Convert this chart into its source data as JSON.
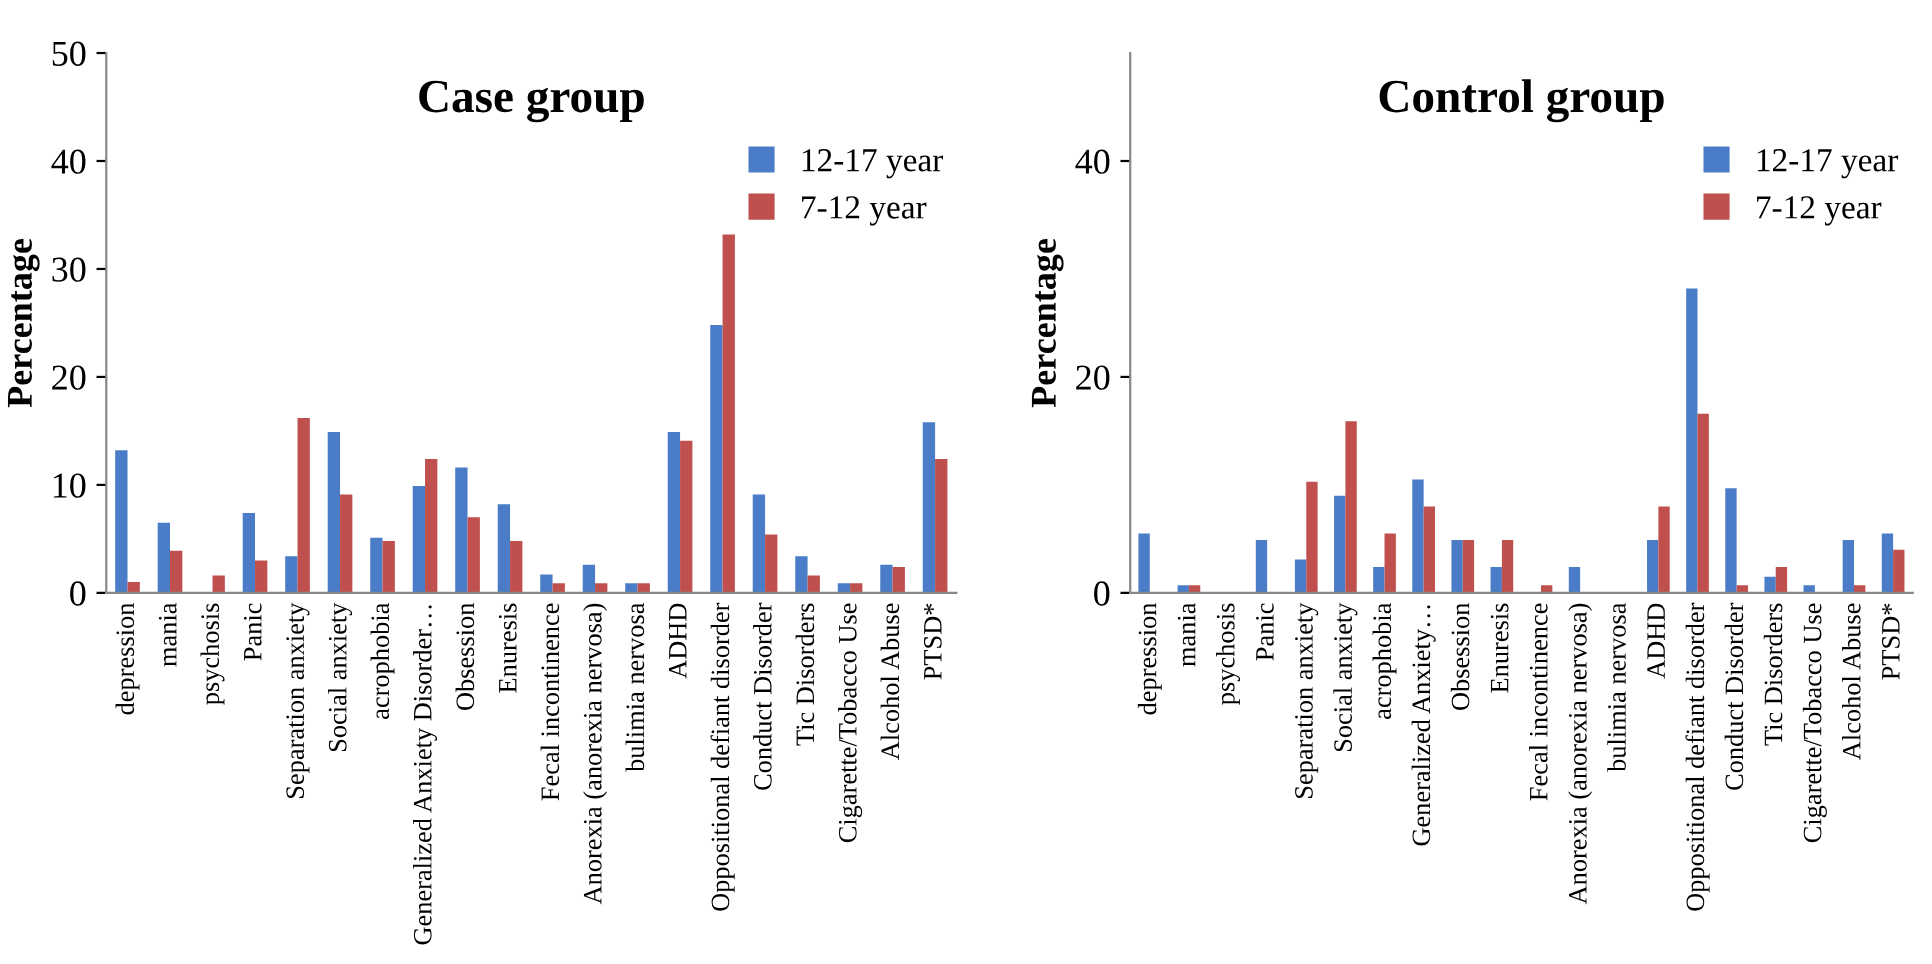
{
  "chart_data": [
    {
      "type": "bar",
      "title": "Case group",
      "ylabel": "Percentage",
      "categories": [
        "depression",
        "mania",
        "psychosis",
        "Panic",
        "Separation anxiety",
        "Social anxiety",
        "acrophobia",
        "Generalized Anxiety Disorder…",
        "Obsession",
        "Enuresis",
        "Fecal incontinence",
        "Anorexia (anorexia nervosa)",
        "bulimia nervosa",
        "ADHD",
        "Oppositional defiant disorder",
        "Conduct Disorder",
        "Tic Disorders",
        "Cigarette/Tobacco Use",
        "Alcohol Abuse",
        "PTSD*"
      ],
      "series": [
        {
          "name": "12-17 year",
          "color": "#4a7cc7",
          "values": [
            13.2,
            6.5,
            0,
            7.4,
            3.4,
            14.9,
            5.1,
            9.9,
            11.6,
            8.2,
            1.7,
            2.6,
            0.9,
            14.9,
            24.8,
            9.1,
            3.4,
            0.9,
            2.6,
            15.8
          ]
        },
        {
          "name": "7-12 year",
          "color": "#c0504d",
          "values": [
            1.0,
            3.9,
            1.6,
            3.0,
            16.2,
            9.1,
            4.8,
            12.4,
            7.0,
            4.8,
            0.9,
            0.9,
            0.9,
            14.1,
            33.2,
            5.4,
            1.6,
            0.9,
            2.4,
            12.4
          ]
        }
      ],
      "ylim": [
        0,
        50
      ],
      "yticks": [
        0,
        10,
        20,
        30,
        40,
        50
      ],
      "grid": false,
      "legend": "top right"
    },
    {
      "type": "bar",
      "title": "Control group",
      "ylabel": "Percentage",
      "categories": [
        "depression",
        "mania",
        "psychosis",
        "Panic",
        "Separation anxiety",
        "Social anxiety",
        "acrophobia",
        "Generalized Anxiety…",
        "Obsession",
        "Enuresis",
        "Fecal incontinence",
        "Anorexia (anorexia nervosa)",
        "bulimia nervosa",
        "ADHD",
        "Oppositional defiant disorder",
        "Conduct Disorder",
        "Tic Disorders",
        "Cigarette/Tobacco Use",
        "Alcohol Abuse",
        "PTSD*"
      ],
      "series": [
        {
          "name": "12-17 year",
          "color": "#4a7cc7",
          "values": [
            5.5,
            0.7,
            0,
            4.9,
            3.1,
            9.0,
            2.4,
            10.5,
            4.9,
            2.4,
            0,
            2.4,
            0,
            4.9,
            28.2,
            9.7,
            1.5,
            0.7,
            4.9,
            5.5
          ]
        },
        {
          "name": "7-12 year",
          "color": "#c0504d",
          "values": [
            0,
            0.7,
            0,
            0,
            10.3,
            15.9,
            5.5,
            8.0,
            4.9,
            4.9,
            0.7,
            0,
            0,
            8.0,
            16.6,
            0.7,
            2.4,
            0,
            0.7,
            4.0
          ]
        }
      ],
      "ylim": [
        0,
        50
      ],
      "yticks": [
        0,
        20,
        40
      ],
      "grid": false,
      "legend": "top right"
    }
  ]
}
